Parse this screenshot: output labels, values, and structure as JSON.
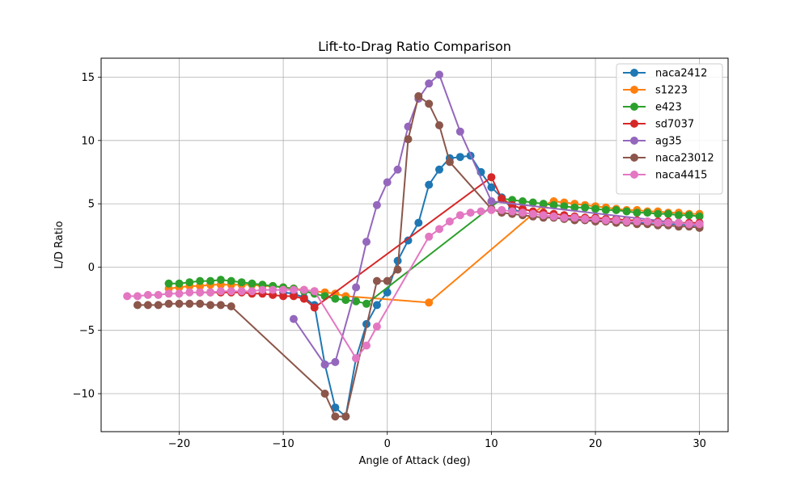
{
  "chart_data": {
    "type": "line",
    "title": "Lift-to-Drag Ratio Comparison",
    "xlabel": "Angle of Attack (deg)",
    "ylabel": "L/D Ratio",
    "xlim": [
      -27.5,
      32.75
    ],
    "ylim": [
      -13.0,
      16.5
    ],
    "xticks": [
      -20,
      -10,
      0,
      10,
      20,
      30
    ],
    "xtick_labels": [
      "−20",
      "−10",
      "0",
      "10",
      "20",
      "30"
    ],
    "yticks": [
      -10,
      -5,
      0,
      5,
      10,
      15
    ],
    "ytick_labels": [
      "−10",
      "−5",
      "0",
      "5",
      "10",
      "15"
    ],
    "grid": true,
    "legend_position": "upper-right",
    "series": [
      {
        "name": "naca2412",
        "color": "#1f77b4",
        "x": [
          -10,
          -9,
          -8,
          -7,
          -6,
          -5,
          -4,
          -3,
          -2,
          -1,
          0,
          1,
          2,
          3,
          4,
          5,
          6,
          7,
          8,
          9,
          10,
          11,
          12,
          13,
          14,
          15,
          16,
          17,
          18,
          19,
          20,
          21,
          22,
          23,
          24,
          25,
          26,
          27,
          28,
          29,
          30
        ],
        "y": [
          -2.0,
          -2.1,
          -2.4,
          -3.0,
          -7.7,
          -11.1,
          -11.8,
          -7.2,
          -4.5,
          -3.0,
          -2.0,
          0.5,
          2.1,
          3.5,
          6.5,
          7.7,
          8.6,
          8.7,
          8.8,
          7.5,
          6.3,
          5.5,
          4.6,
          4.3,
          4.2,
          4.1,
          4.0,
          3.9,
          3.8,
          3.8,
          3.7,
          3.7,
          3.6,
          3.6,
          3.5,
          3.5,
          3.5,
          3.4,
          3.4,
          3.3,
          3.3
        ]
      },
      {
        "name": "s1223",
        "color": "#ff7f0e",
        "x": [
          -21,
          -20,
          -19,
          -18,
          -17,
          -16,
          -15,
          -14,
          -13,
          -12,
          -11,
          -10,
          -9,
          -8,
          -7,
          -6,
          -5,
          -4,
          4,
          15,
          16,
          17,
          18,
          19,
          20,
          21,
          22,
          23,
          24,
          25,
          26,
          27,
          28,
          29,
          30
        ],
        "y": [
          -1.7,
          -1.6,
          -1.5,
          -1.5,
          -1.4,
          -1.4,
          -1.4,
          -1.4,
          -1.4,
          -1.5,
          -1.5,
          -1.6,
          -1.7,
          -1.8,
          -1.9,
          -2.0,
          -2.1,
          -2.3,
          -2.8,
          4.9,
          5.2,
          5.1,
          5.0,
          4.9,
          4.8,
          4.7,
          4.6,
          4.5,
          4.5,
          4.4,
          4.4,
          4.3,
          4.3,
          4.2,
          4.2
        ]
      },
      {
        "name": "e423",
        "color": "#2ca02c",
        "x": [
          -21,
          -20,
          -19,
          -18,
          -17,
          -16,
          -15,
          -14,
          -13,
          -12,
          -11,
          -10,
          -9,
          -8,
          -7,
          -6,
          -5,
          -4,
          -3,
          -2,
          11,
          12,
          13,
          14,
          15,
          16,
          17,
          18,
          19,
          20,
          21,
          22,
          23,
          24,
          25,
          26,
          27,
          28,
          29,
          30
        ],
        "y": [
          -1.3,
          -1.3,
          -1.2,
          -1.1,
          -1.1,
          -1.0,
          -1.1,
          -1.2,
          -1.3,
          -1.4,
          -1.5,
          -1.6,
          -1.7,
          -1.9,
          -2.1,
          -2.3,
          -2.5,
          -2.6,
          -2.7,
          -2.9,
          5.4,
          5.3,
          5.2,
          5.1,
          5.0,
          4.9,
          4.8,
          4.7,
          4.7,
          4.6,
          4.5,
          4.5,
          4.4,
          4.3,
          4.3,
          4.2,
          4.2,
          4.1,
          4.1,
          4.0
        ]
      },
      {
        "name": "sd7037",
        "color": "#d62728",
        "x": [
          -18,
          -17,
          -16,
          -15,
          -14,
          -13,
          -12,
          -11,
          -10,
          -9,
          -8,
          -7,
          10,
          11,
          12,
          13,
          14,
          15,
          16,
          17,
          18,
          19,
          20,
          21,
          22,
          23,
          24,
          25,
          26,
          27,
          28,
          29,
          30
        ],
        "y": [
          -2.0,
          -2.0,
          -2.0,
          -2.0,
          -2.0,
          -2.1,
          -2.1,
          -2.2,
          -2.3,
          -2.3,
          -2.5,
          -3.2,
          7.1,
          5.4,
          4.9,
          4.6,
          4.4,
          4.3,
          4.2,
          4.1,
          4.0,
          3.9,
          3.9,
          3.8,
          3.8,
          3.7,
          3.7,
          3.6,
          3.6,
          3.6,
          3.5,
          3.5,
          3.5
        ]
      },
      {
        "name": "ag35",
        "color": "#9467bd",
        "x": [
          -9,
          -6,
          -5,
          -3,
          -2,
          -1,
          0,
          1,
          2,
          3,
          4,
          5,
          7,
          10,
          30
        ],
        "y": [
          -4.1,
          -7.7,
          -7.5,
          -1.6,
          2.0,
          4.9,
          6.7,
          7.7,
          11.1,
          13.3,
          14.5,
          15.2,
          10.7,
          5.2,
          3.3
        ]
      },
      {
        "name": "naca23012",
        "color": "#8c564b",
        "x": [
          -24,
          -23,
          -22,
          -21,
          -20,
          -19,
          -18,
          -17,
          -16,
          -15,
          -6,
          -5,
          -4,
          -1,
          0,
          1,
          2,
          3,
          4,
          5,
          6,
          10,
          11,
          12,
          13,
          14,
          15,
          16,
          17,
          18,
          19,
          20,
          21,
          22,
          23,
          24,
          25,
          26,
          27,
          28,
          29,
          30
        ],
        "y": [
          -3.0,
          -3.0,
          -3.0,
          -2.9,
          -2.9,
          -2.9,
          -2.9,
          -3.0,
          -3.0,
          -3.1,
          -10.0,
          -11.8,
          -11.8,
          -1.1,
          -1.1,
          -0.2,
          10.1,
          13.5,
          12.9,
          11.2,
          8.3,
          4.6,
          4.3,
          4.2,
          4.1,
          4.0,
          3.9,
          3.9,
          3.8,
          3.7,
          3.7,
          3.6,
          3.6,
          3.5,
          3.5,
          3.4,
          3.4,
          3.3,
          3.3,
          3.2,
          3.2,
          3.1
        ]
      },
      {
        "name": "naca4415",
        "color": "#e377c2",
        "x": [
          -25,
          -24,
          -23,
          -22,
          -21,
          -20,
          -19,
          -18,
          -17,
          -16,
          -15,
          -14,
          -13,
          -12,
          -11,
          -10,
          -9,
          -8,
          -7,
          -3,
          -2,
          -1,
          4,
          5,
          6,
          7,
          8,
          9,
          10,
          11,
          12,
          13,
          14,
          15,
          16,
          17,
          18,
          19,
          20,
          21,
          22,
          23,
          24,
          25,
          26,
          27,
          28,
          29,
          30
        ],
        "y": [
          -2.3,
          -2.3,
          -2.2,
          -2.2,
          -2.1,
          -2.1,
          -2.0,
          -2.0,
          -2.0,
          -1.9,
          -1.9,
          -1.9,
          -1.9,
          -1.8,
          -1.8,
          -1.8,
          -1.8,
          -1.8,
          -1.9,
          -7.2,
          -6.2,
          -4.7,
          2.4,
          3.0,
          3.6,
          4.1,
          4.3,
          4.4,
          4.5,
          4.5,
          4.4,
          4.3,
          4.2,
          4.1,
          4.0,
          3.9,
          3.9,
          3.8,
          3.8,
          3.7,
          3.7,
          3.6,
          3.6,
          3.6,
          3.5,
          3.5,
          3.5,
          3.4,
          3.4
        ]
      }
    ]
  }
}
